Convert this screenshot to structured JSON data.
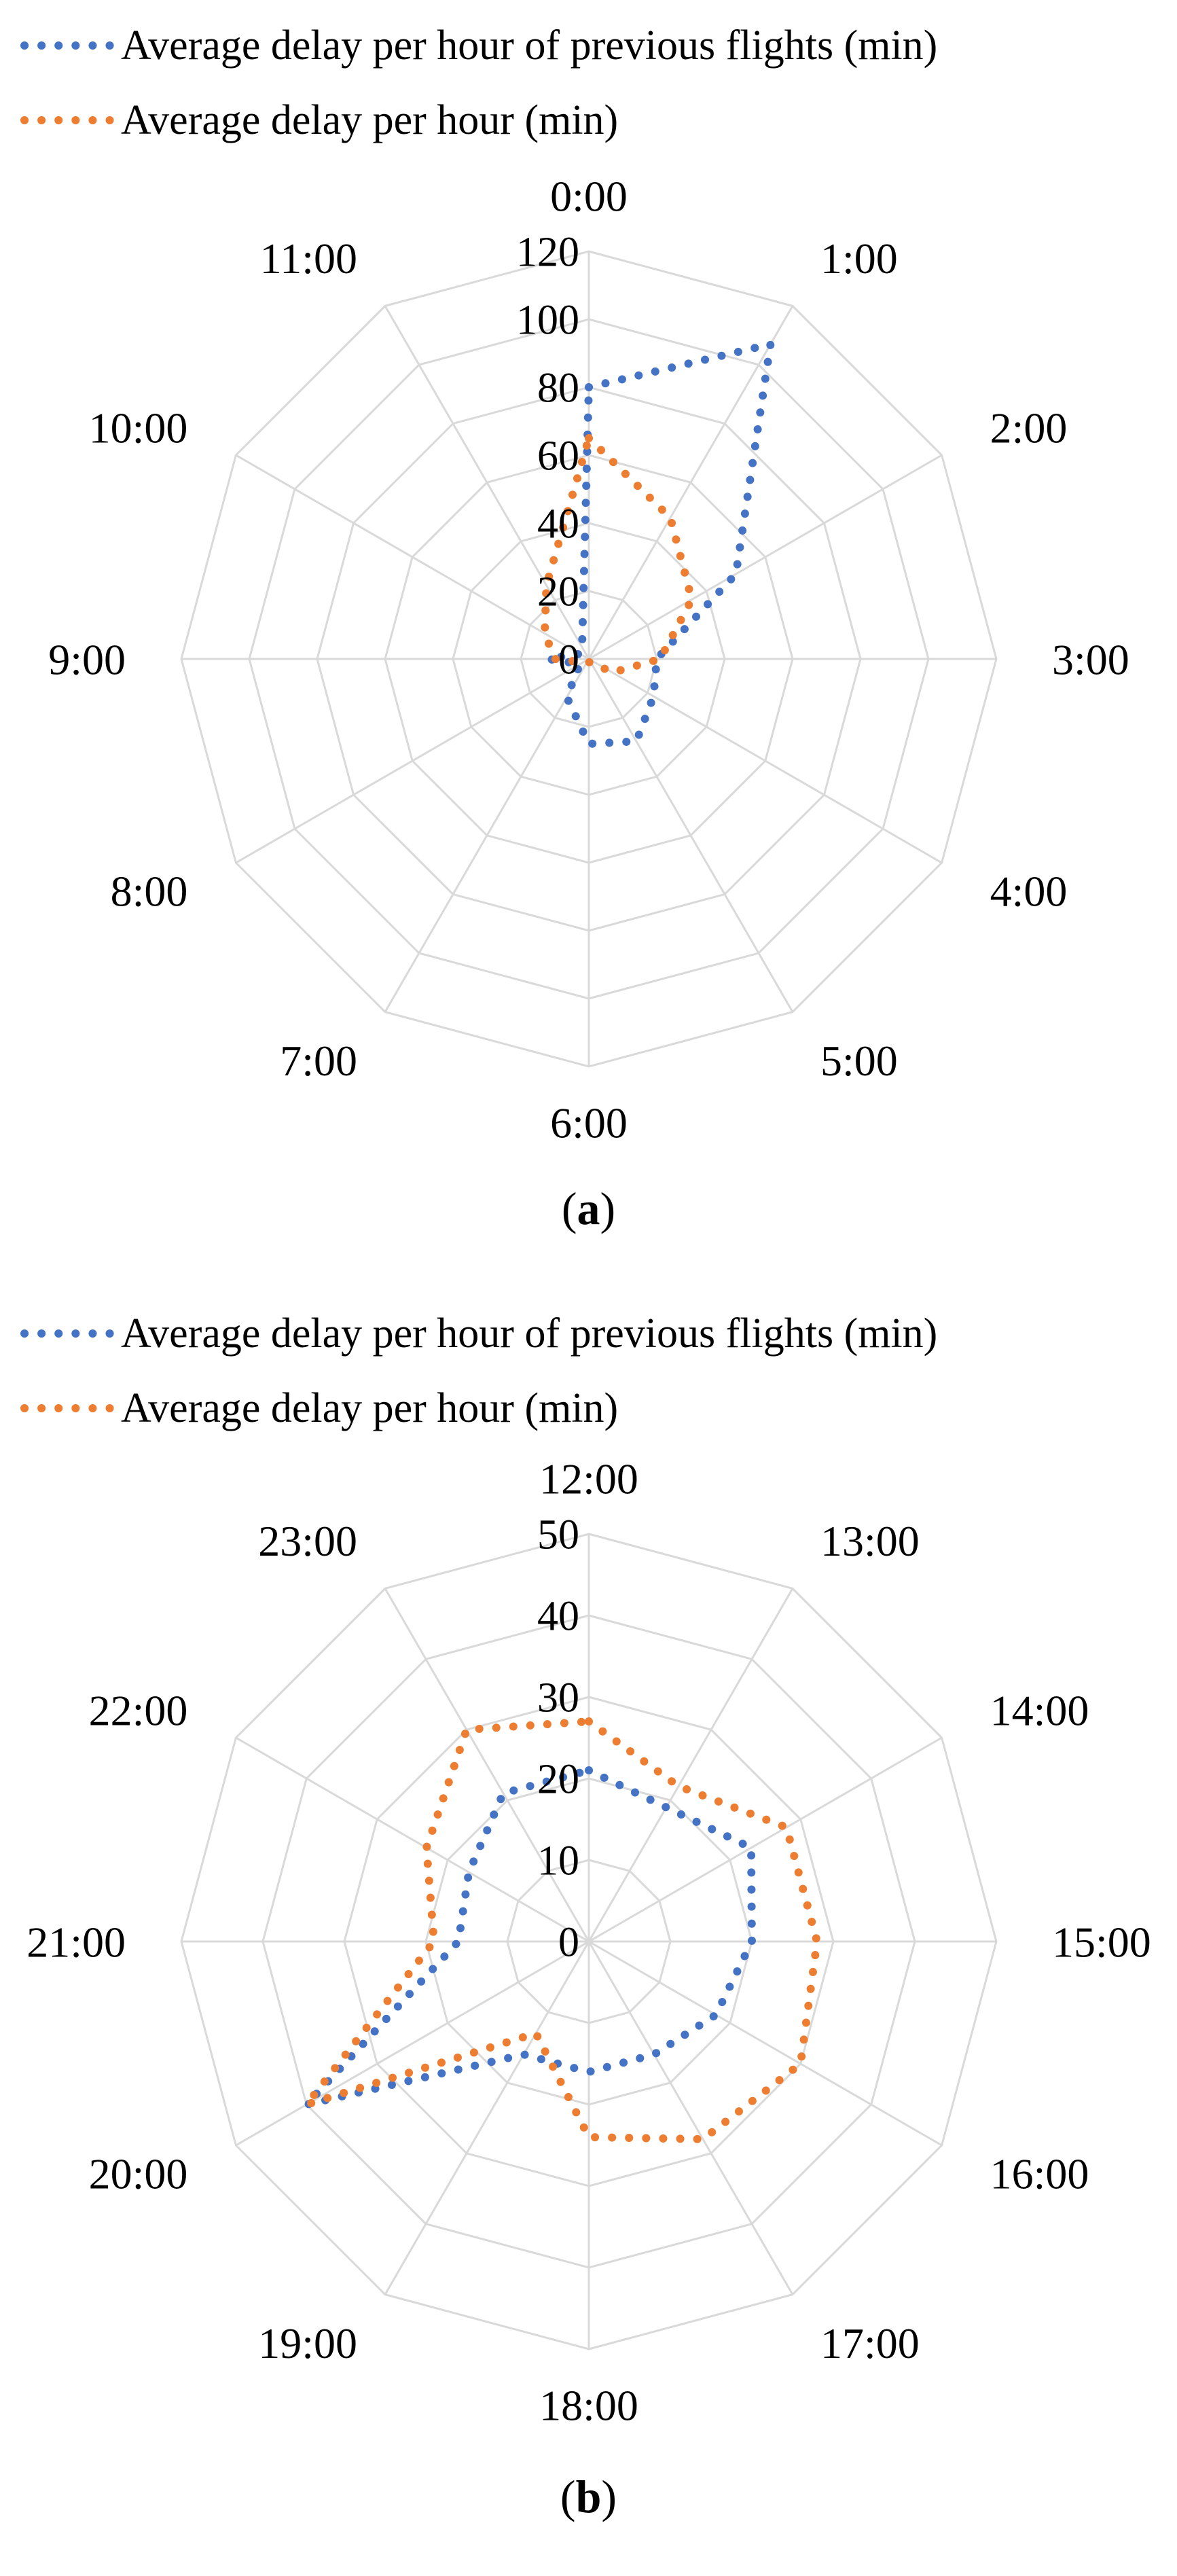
{
  "colors": {
    "blue": "#4472C4",
    "orange": "#ED7D31",
    "grid": "#d9d9d9"
  },
  "chart_data": [
    {
      "type": "radar",
      "panel_label": "a",
      "legend": [
        "Average delay per hour of previous flights (min)",
        "Average delay per hour (min)"
      ],
      "categories": [
        "0:00",
        "1:00",
        "2:00",
        "3:00",
        "4:00",
        "5:00",
        "6:00",
        "7:00",
        "8:00",
        "9:00",
        "10:00",
        "11:00"
      ],
      "rmax": 120,
      "ticks": [
        0,
        20,
        40,
        60,
        80,
        100,
        120
      ],
      "tick_labels": [
        "0",
        "20",
        "40",
        "60",
        "80",
        "100",
        "120"
      ],
      "series": [
        {
          "name": "Average delay per hour of previous flights (min)",
          "color": "#4472C4",
          "values": [
            80,
            107,
            50,
            20,
            22,
            28,
            25,
            13,
            3,
            12,
            3,
            4
          ]
        },
        {
          "name": "Average delay per hour (min)",
          "color": "#ED7D31",
          "values": [
            65,
            48,
            35,
            21,
            8,
            1,
            1,
            1,
            2,
            10,
            15,
            25
          ]
        }
      ]
    },
    {
      "type": "radar",
      "panel_label": "b",
      "legend": [
        "Average delay per hour of previous flights (min)",
        "Average delay per hour (min)"
      ],
      "categories": [
        "12:00",
        "13:00",
        "14:00",
        "15:00",
        "16:00",
        "17:00",
        "18:00",
        "19:00",
        "20:00",
        "21:00",
        "22:00",
        "23:00"
      ],
      "rmax": 50,
      "ticks": [
        0,
        10,
        20,
        30,
        40,
        50
      ],
      "tick_labels": [
        "0",
        "10",
        "20",
        "30",
        "40",
        "50"
      ],
      "series": [
        {
          "name": "Average delay per hour of previous flights (min)",
          "color": "#4472C4",
          "values": [
            21,
            19,
            23,
            20,
            18,
            16,
            16,
            16,
            40,
            16,
            17,
            21
          ]
        },
        {
          "name": "Average delay per hour (min)",
          "color": "#ED7D31",
          "values": [
            27,
            22,
            28,
            28,
            30,
            28,
            24,
            13,
            40,
            19,
            23,
            30
          ]
        }
      ]
    }
  ]
}
